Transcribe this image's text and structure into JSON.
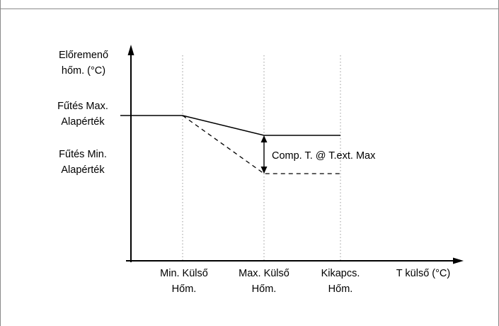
{
  "y_axis_label": [
    "Előremenő",
    "hőm. (°C)"
  ],
  "x_axis_label": "T külső (°C)",
  "y_markers": {
    "max_setpoint": [
      "Fűtés Max.",
      "Alapérték"
    ],
    "min_setpoint": [
      "Fűtés Min.",
      "Alapérték"
    ]
  },
  "x_markers": {
    "min_outdoor": [
      "Min. Külső",
      "Hőm."
    ],
    "max_outdoor": [
      "Max. Külső",
      "Hőm."
    ],
    "cutoff": [
      "Kikapcs.",
      "Hőm."
    ]
  },
  "annotation": "Comp. T. @ T.ext. Max"
}
